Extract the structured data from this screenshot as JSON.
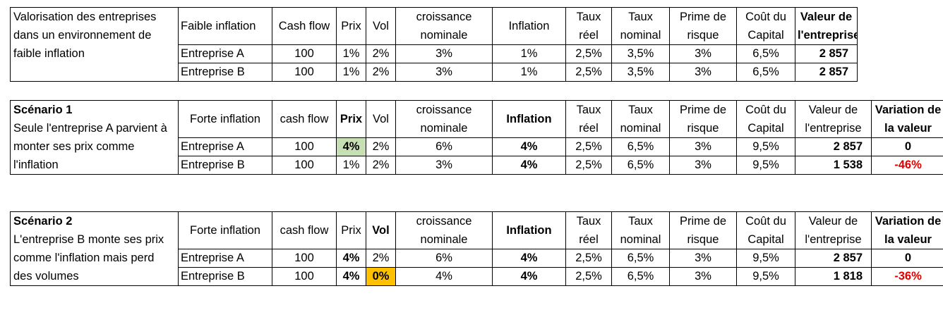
{
  "table1": {
    "description": "Valorisation des entreprises dans un environnement de faible inflation",
    "headers": [
      "Faible inflation",
      "Cash flow",
      "Prix",
      "Vol",
      "croissance nominale",
      "Inflation",
      "Taux réel",
      "Taux nominal",
      "Prime de risque",
      "Coût du Capital",
      "Valeur de l'entreprise"
    ],
    "rows": [
      [
        "Entreprise A",
        "100",
        "1%",
        "2%",
        "3%",
        "1%",
        "2,5%",
        "3,5%",
        "3%",
        "6,5%",
        "2 857"
      ],
      [
        "Entreprise B",
        "100",
        "1%",
        "2%",
        "3%",
        "1%",
        "2,5%",
        "3,5%",
        "3%",
        "6,5%",
        "2 857"
      ]
    ]
  },
  "table2": {
    "title": "Scénario 1",
    "description": "Seule l'entreprise A parvient à monter ses prix comme l'inflation",
    "headers": [
      "Forte inflation",
      "cash flow",
      "Prix",
      "Vol",
      "croissance nominale",
      "Inflation",
      "Taux réel",
      "Taux nominal",
      "Prime de risque",
      "Coût du Capital",
      "Valeur de l'entreprise",
      "Variation de la valeur"
    ],
    "rows": [
      [
        "Entreprise A",
        "100",
        "4%",
        "2%",
        "6%",
        "4%",
        "2,5%",
        "6,5%",
        "3%",
        "9,5%",
        "2 857",
        "0"
      ],
      [
        "Entreprise B",
        "100",
        "1%",
        "2%",
        "3%",
        "4%",
        "2,5%",
        "6,5%",
        "3%",
        "9,5%",
        "1 538",
        "-46%"
      ]
    ]
  },
  "table3": {
    "title": "Scénario 2",
    "description": "L'entreprise B monte ses prix comme l'inflation mais perd des volumes",
    "headers": [
      "Forte inflation",
      "cash flow",
      "Prix",
      "Vol",
      "croissance nominale",
      "Inflation",
      "Taux réel",
      "Taux nominal",
      "Prime de risque",
      "Coût du Capital",
      "Valeur de l'entreprise",
      "Variation de la valeur"
    ],
    "rows": [
      [
        "Entreprise A",
        "100",
        "4%",
        "2%",
        "6%",
        "4%",
        "2,5%",
        "6,5%",
        "3%",
        "9,5%",
        "2 857",
        "0"
      ],
      [
        "Entreprise B",
        "100",
        "4%",
        "0%",
        "4%",
        "4%",
        "2,5%",
        "6,5%",
        "3%",
        "9,5%",
        "1 818",
        "-36%"
      ]
    ]
  },
  "colors": {
    "price_highlight": "#c6e0b4",
    "volume_highlight": "#ffc000",
    "negative": "#e00000"
  }
}
